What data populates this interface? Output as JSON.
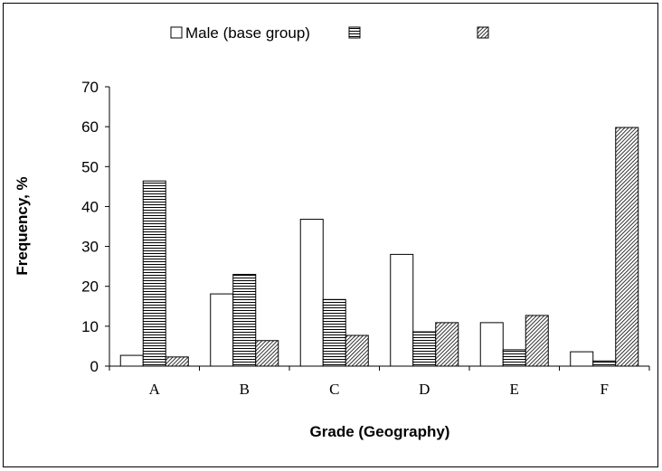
{
  "chart_data": {
    "type": "bar",
    "categories": [
      "A",
      "B",
      "C",
      "D",
      "E",
      "F"
    ],
    "series": [
      {
        "name": "Male (base group)",
        "pattern": "solid",
        "values": [
          2.7,
          18.1,
          36.8,
          28.0,
          10.9,
          3.6
        ]
      },
      {
        "name": "",
        "pattern": "horizontal",
        "values": [
          46.4,
          23.0,
          16.7,
          8.6,
          4.1,
          1.3
        ]
      },
      {
        "name": "",
        "pattern": "diagonal",
        "values": [
          2.3,
          6.4,
          7.7,
          10.9,
          12.7,
          59.8
        ]
      }
    ],
    "title": "",
    "xlabel": "Grade (Geography)",
    "ylabel": "Frequency, %",
    "ylim": [
      0,
      70
    ],
    "yticks": [
      0,
      10,
      20,
      30,
      40,
      50,
      60,
      70
    ],
    "grid": false,
    "legend": "top",
    "colors": {
      "background": "#ffffff",
      "bar_fill": "#ffffff",
      "stroke": "#000000"
    }
  }
}
